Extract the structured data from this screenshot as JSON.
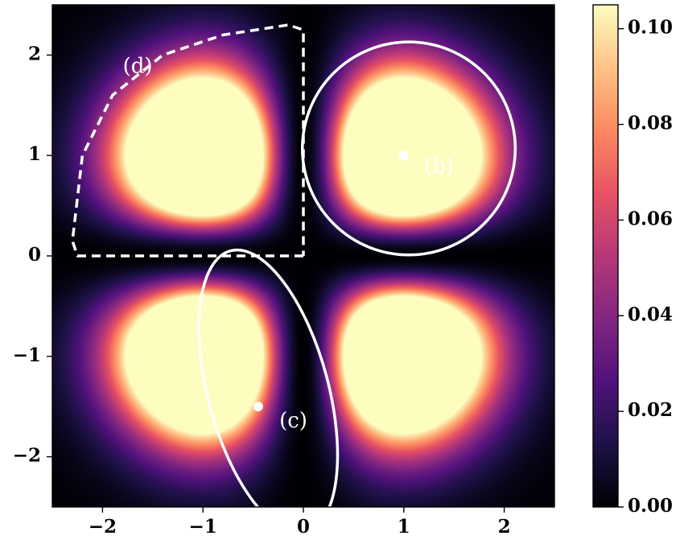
{
  "chart_data": {
    "type": "heatmap",
    "title": "",
    "xlabel": "",
    "ylabel": "",
    "xlim": [
      -2.5,
      2.5
    ],
    "ylim": [
      -2.5,
      2.5
    ],
    "x_ticks": [
      -2,
      -1,
      0,
      1,
      2
    ],
    "y_ticks": [
      -2,
      -1,
      0,
      1,
      2
    ],
    "x_tick_labels": [
      "−2",
      "−1",
      "0",
      "1",
      "2"
    ],
    "y_tick_labels": [
      "−2",
      "−1",
      "0",
      "1",
      "2"
    ],
    "colormap": "magma",
    "colormap_stops": [
      "#000004",
      "#1d1147",
      "#51127c",
      "#822681",
      "#b73779",
      "#e75263",
      "#fc8961",
      "#fec287",
      "#fcfdbf"
    ],
    "color_range": [
      0.0,
      0.105
    ],
    "colorbar_ticks": [
      0.0,
      0.02,
      0.04,
      0.06,
      0.08,
      0.1
    ],
    "colorbar_tick_labels": [
      "0.00",
      "0.02",
      "0.04",
      "0.06",
      "0.08",
      "0.10"
    ],
    "lobe_peaks": [
      {
        "x": -0.55,
        "y": 0.55,
        "value": 0.105
      },
      {
        "x": 0.55,
        "y": 0.55,
        "value": 0.105
      },
      {
        "x": -0.55,
        "y": -0.55,
        "value": 0.1
      },
      {
        "x": 0.55,
        "y": -0.55,
        "value": 0.1
      }
    ],
    "points": [
      {
        "x": 1.0,
        "y": 1.0
      },
      {
        "x": -0.45,
        "y": -1.5
      }
    ],
    "annotations": [
      {
        "text": "(b)",
        "x": 1.35,
        "y": 0.88
      },
      {
        "text": "(c)",
        "x": -0.1,
        "y": -1.65
      },
      {
        "text": "(d)",
        "x": -1.65,
        "y": 1.88
      }
    ],
    "region_b_circle": {
      "cx": 1.05,
      "cy": 1.07,
      "r": 1.06
    },
    "region_c_ellipse": {
      "cx": -0.35,
      "cy": -1.35,
      "rx": 0.6,
      "ry": 1.45,
      "angle_deg": -15
    },
    "region_d_boundary": [
      [
        0,
        0
      ],
      [
        -2.25,
        0
      ],
      [
        -2.3,
        0.15
      ],
      [
        -2.2,
        1.0
      ],
      [
        -1.9,
        1.6
      ],
      [
        -1.4,
        2.0
      ],
      [
        -0.8,
        2.2
      ],
      [
        -0.15,
        2.3
      ],
      [
        0,
        2.25
      ],
      [
        0,
        0
      ]
    ],
    "grid": false,
    "legend": "none",
    "colorbar_position": "right"
  }
}
